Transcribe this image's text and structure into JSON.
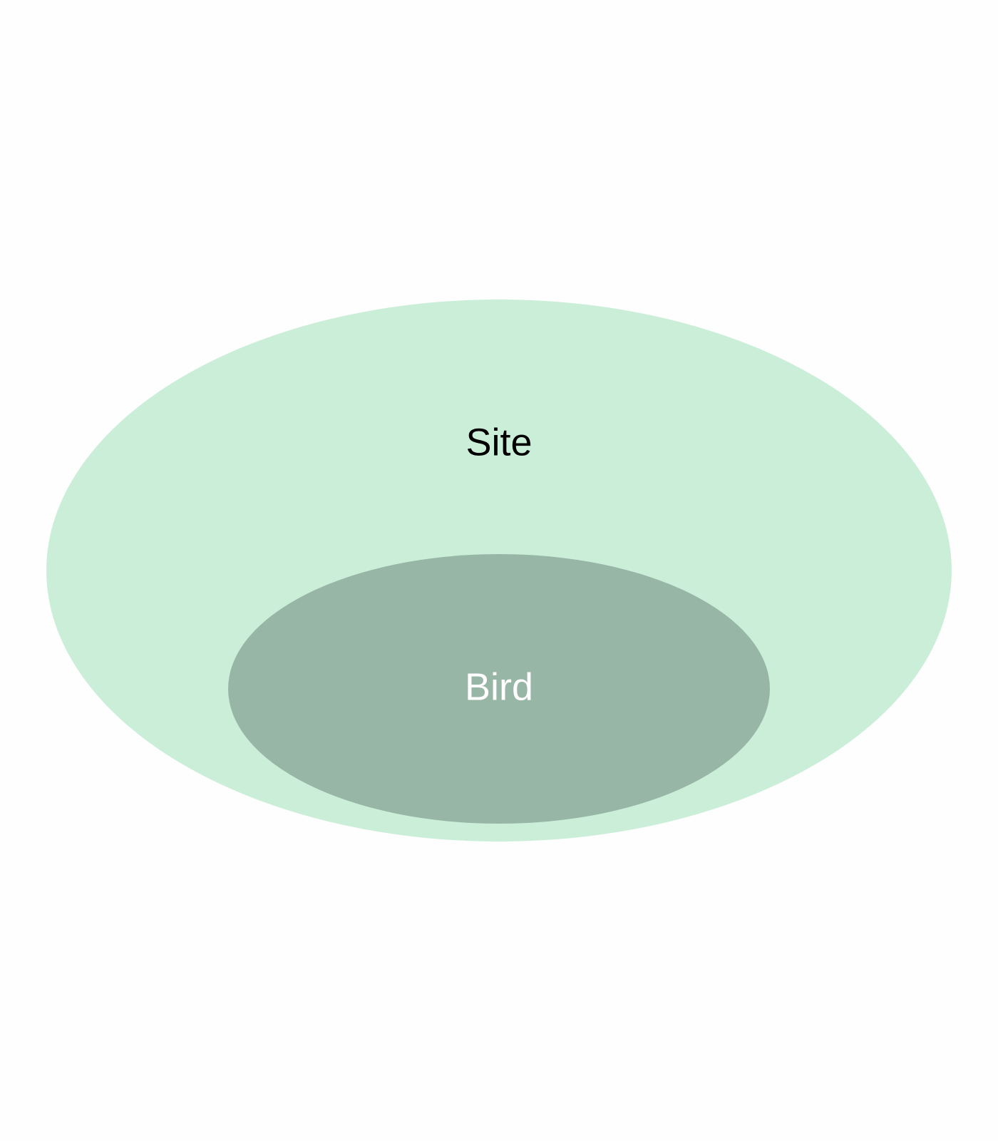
{
  "diagram": {
    "outer": {
      "label": "Site",
      "fill": "#cbeed9",
      "text_color": "#000000"
    },
    "inner": {
      "label": "Bird",
      "fill": "#98b6a6",
      "text_color": "#ffffff"
    }
  }
}
